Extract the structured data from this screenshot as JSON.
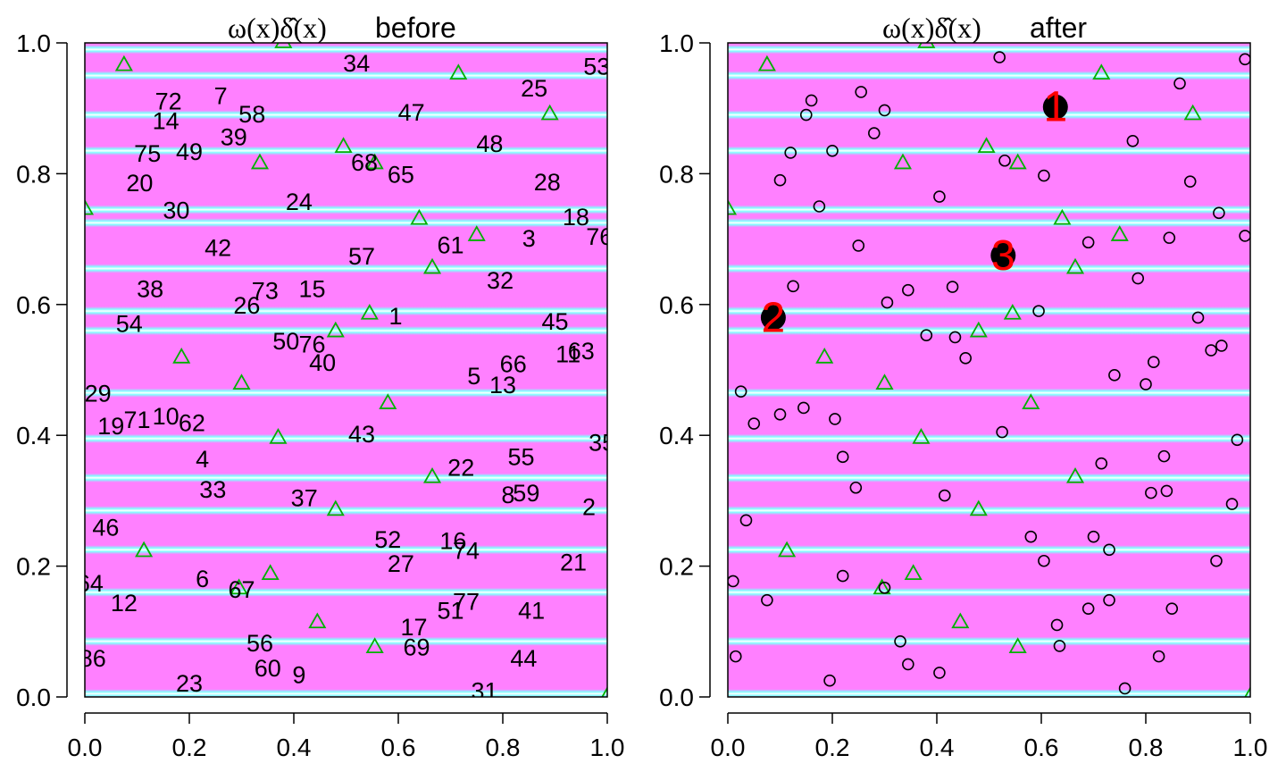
{
  "colors": {
    "background": "#ff80ff",
    "band_edge": "#80ffff",
    "band_mid": "#ffffff",
    "triangle": "#00b000",
    "circle": "#000000",
    "highlight_label": "#ff0000"
  },
  "chart_data": [
    {
      "type": "scatter",
      "title": "before",
      "title_formula": "ω(x)δ̂(x)",
      "xlim": [
        0,
        1
      ],
      "ylim": [
        0,
        1
      ],
      "x_ticks": [
        "0.0",
        "0.2",
        "0.4",
        "0.6",
        "0.8",
        "1.0"
      ],
      "y_ticks": [
        "0.0",
        "0.2",
        "0.4",
        "0.6",
        "0.8",
        "1.0"
      ],
      "background_bands_y": [
        0.005,
        0.085,
        0.16,
        0.225,
        0.285,
        0.335,
        0.395,
        0.465,
        0.56,
        0.59,
        0.655,
        0.725,
        0.745,
        0.835,
        0.89,
        0.95,
        0.99
      ],
      "triangles": [
        [
          0.075,
          0.965
        ],
        [
          0.38,
          1.0
        ],
        [
          0.715,
          0.952
        ],
        [
          0.89,
          0.89
        ],
        [
          0.495,
          0.84
        ],
        [
          0.335,
          0.815
        ],
        [
          0.555,
          0.815
        ],
        [
          0.0,
          0.745
        ],
        [
          0.64,
          0.73
        ],
        [
          0.75,
          0.705
        ],
        [
          0.665,
          0.655
        ],
        [
          0.545,
          0.585
        ],
        [
          0.48,
          0.558
        ],
        [
          0.185,
          0.518
        ],
        [
          0.3,
          0.478
        ],
        [
          0.58,
          0.448
        ],
        [
          0.37,
          0.395
        ],
        [
          0.665,
          0.335
        ],
        [
          0.48,
          0.285
        ],
        [
          0.113,
          0.222
        ],
        [
          0.355,
          0.187
        ],
        [
          0.295,
          0.165
        ],
        [
          0.445,
          0.113
        ],
        [
          0.555,
          0.075
        ],
        [
          1.0,
          0.0
        ]
      ],
      "labels": [
        {
          "text": "34",
          "x": 0.52,
          "y": 0.97
        },
        {
          "text": "53",
          "x": 0.98,
          "y": 0.965
        },
        {
          "text": "25",
          "x": 0.86,
          "y": 0.932
        },
        {
          "text": "7",
          "x": 0.26,
          "y": 0.92
        },
        {
          "text": "72",
          "x": 0.16,
          "y": 0.912
        },
        {
          "text": "14",
          "x": 0.155,
          "y": 0.882
        },
        {
          "text": "58",
          "x": 0.32,
          "y": 0.892
        },
        {
          "text": "47",
          "x": 0.625,
          "y": 0.895
        },
        {
          "text": "39",
          "x": 0.285,
          "y": 0.857
        },
        {
          "text": "75",
          "x": 0.12,
          "y": 0.832
        },
        {
          "text": "49",
          "x": 0.2,
          "y": 0.835
        },
        {
          "text": "48",
          "x": 0.775,
          "y": 0.847
        },
        {
          "text": "68",
          "x": 0.535,
          "y": 0.818
        },
        {
          "text": "65",
          "x": 0.605,
          "y": 0.8
        },
        {
          "text": "28",
          "x": 0.885,
          "y": 0.788
        },
        {
          "text": "20",
          "x": 0.105,
          "y": 0.787
        },
        {
          "text": "24",
          "x": 0.41,
          "y": 0.758
        },
        {
          "text": "30",
          "x": 0.175,
          "y": 0.745
        },
        {
          "text": "18",
          "x": 0.94,
          "y": 0.735
        },
        {
          "text": "76",
          "x": 0.985,
          "y": 0.705
        },
        {
          "text": "3",
          "x": 0.85,
          "y": 0.702
        },
        {
          "text": "61",
          "x": 0.7,
          "y": 0.692
        },
        {
          "text": "42",
          "x": 0.255,
          "y": 0.688
        },
        {
          "text": "57",
          "x": 0.53,
          "y": 0.675
        },
        {
          "text": "32",
          "x": 0.795,
          "y": 0.638
        },
        {
          "text": "38",
          "x": 0.125,
          "y": 0.625
        },
        {
          "text": "73",
          "x": 0.345,
          "y": 0.622
        },
        {
          "text": "15",
          "x": 0.435,
          "y": 0.625
        },
        {
          "text": "26",
          "x": 0.31,
          "y": 0.6
        },
        {
          "text": "1",
          "x": 0.595,
          "y": 0.583
        },
        {
          "text": "54",
          "x": 0.085,
          "y": 0.572
        },
        {
          "text": "45",
          "x": 0.9,
          "y": 0.575
        },
        {
          "text": "50",
          "x": 0.385,
          "y": 0.545
        },
        {
          "text": "76",
          "x": 0.435,
          "y": 0.54
        },
        {
          "text": "63",
          "x": 0.95,
          "y": 0.53
        },
        {
          "text": "11",
          "x": 0.925,
          "y": 0.525
        },
        {
          "text": "40",
          "x": 0.455,
          "y": 0.512
        },
        {
          "text": "66",
          "x": 0.82,
          "y": 0.51
        },
        {
          "text": "5",
          "x": 0.745,
          "y": 0.492
        },
        {
          "text": "13",
          "x": 0.8,
          "y": 0.478
        },
        {
          "text": "29",
          "x": 0.025,
          "y": 0.465
        },
        {
          "text": "71",
          "x": 0.1,
          "y": 0.425
        },
        {
          "text": "10",
          "x": 0.155,
          "y": 0.43
        },
        {
          "text": "62",
          "x": 0.205,
          "y": 0.42
        },
        {
          "text": "19",
          "x": 0.05,
          "y": 0.415
        },
        {
          "text": "43",
          "x": 0.53,
          "y": 0.403
        },
        {
          "text": "35",
          "x": 0.99,
          "y": 0.39
        },
        {
          "text": "4",
          "x": 0.225,
          "y": 0.365
        },
        {
          "text": "55",
          "x": 0.835,
          "y": 0.368
        },
        {
          "text": "22",
          "x": 0.72,
          "y": 0.352
        },
        {
          "text": "33",
          "x": 0.245,
          "y": 0.318
        },
        {
          "text": "37",
          "x": 0.42,
          "y": 0.305
        },
        {
          "text": "8",
          "x": 0.81,
          "y": 0.31
        },
        {
          "text": "59",
          "x": 0.845,
          "y": 0.313
        },
        {
          "text": "2",
          "x": 0.965,
          "y": 0.292
        },
        {
          "text": "46",
          "x": 0.04,
          "y": 0.26
        },
        {
          "text": "52",
          "x": 0.58,
          "y": 0.242
        },
        {
          "text": "16",
          "x": 0.705,
          "y": 0.24
        },
        {
          "text": "74",
          "x": 0.73,
          "y": 0.225
        },
        {
          "text": "27",
          "x": 0.605,
          "y": 0.205
        },
        {
          "text": "21",
          "x": 0.935,
          "y": 0.207
        },
        {
          "text": "6",
          "x": 0.225,
          "y": 0.182
        },
        {
          "text": "64",
          "x": 0.01,
          "y": 0.175
        },
        {
          "text": "67",
          "x": 0.3,
          "y": 0.165
        },
        {
          "text": "12",
          "x": 0.075,
          "y": 0.145
        },
        {
          "text": "77",
          "x": 0.73,
          "y": 0.147
        },
        {
          "text": "51",
          "x": 0.7,
          "y": 0.133
        },
        {
          "text": "41",
          "x": 0.855,
          "y": 0.133
        },
        {
          "text": "17",
          "x": 0.63,
          "y": 0.108
        },
        {
          "text": "56",
          "x": 0.335,
          "y": 0.083
        },
        {
          "text": "69",
          "x": 0.635,
          "y": 0.077
        },
        {
          "text": "86",
          "x": 0.015,
          "y": 0.06
        },
        {
          "text": "44",
          "x": 0.84,
          "y": 0.06
        },
        {
          "text": "60",
          "x": 0.35,
          "y": 0.045
        },
        {
          "text": "9",
          "x": 0.41,
          "y": 0.035
        },
        {
          "text": "23",
          "x": 0.2,
          "y": 0.022
        },
        {
          "text": "31",
          "x": 0.765,
          "y": 0.01
        }
      ]
    },
    {
      "type": "scatter",
      "title": "after",
      "title_formula": "ω(x)δ̂(x)",
      "xlim": [
        0,
        1
      ],
      "ylim": [
        0,
        1
      ],
      "x_ticks": [
        "0.0",
        "0.2",
        "0.4",
        "0.6",
        "0.8",
        "1.0"
      ],
      "y_ticks": [
        "0.0",
        "0.2",
        "0.4",
        "0.6",
        "0.8",
        "1.0"
      ],
      "background_bands_y": [
        0.005,
        0.085,
        0.16,
        0.225,
        0.285,
        0.335,
        0.395,
        0.465,
        0.56,
        0.59,
        0.655,
        0.725,
        0.745,
        0.835,
        0.89,
        0.95,
        0.99
      ],
      "triangles": [
        [
          0.075,
          0.965
        ],
        [
          0.38,
          1.0
        ],
        [
          0.715,
          0.952
        ],
        [
          0.89,
          0.89
        ],
        [
          0.495,
          0.84
        ],
        [
          0.335,
          0.815
        ],
        [
          0.555,
          0.815
        ],
        [
          0.0,
          0.745
        ],
        [
          0.64,
          0.73
        ],
        [
          0.75,
          0.705
        ],
        [
          0.665,
          0.655
        ],
        [
          0.545,
          0.585
        ],
        [
          0.48,
          0.558
        ],
        [
          0.185,
          0.518
        ],
        [
          0.3,
          0.478
        ],
        [
          0.58,
          0.448
        ],
        [
          0.37,
          0.395
        ],
        [
          0.665,
          0.335
        ],
        [
          0.48,
          0.285
        ],
        [
          0.113,
          0.222
        ],
        [
          0.355,
          0.187
        ],
        [
          0.295,
          0.165
        ],
        [
          0.445,
          0.113
        ],
        [
          0.555,
          0.075
        ],
        [
          1.0,
          0.0
        ]
      ],
      "circles": [
        [
          0.52,
          0.978
        ],
        [
          0.99,
          0.975
        ],
        [
          0.865,
          0.938
        ],
        [
          0.255,
          0.925
        ],
        [
          0.16,
          0.912
        ],
        [
          0.3,
          0.897
        ],
        [
          0.15,
          0.89
        ],
        [
          0.28,
          0.862
        ],
        [
          0.775,
          0.85
        ],
        [
          0.12,
          0.832
        ],
        [
          0.2,
          0.835
        ],
        [
          0.53,
          0.82
        ],
        [
          0.605,
          0.797
        ],
        [
          0.1,
          0.79
        ],
        [
          0.885,
          0.788
        ],
        [
          0.405,
          0.765
        ],
        [
          0.175,
          0.75
        ],
        [
          0.94,
          0.74
        ],
        [
          0.99,
          0.705
        ],
        [
          0.845,
          0.702
        ],
        [
          0.69,
          0.695
        ],
        [
          0.25,
          0.69
        ],
        [
          0.785,
          0.64
        ],
        [
          0.125,
          0.628
        ],
        [
          0.345,
          0.622
        ],
        [
          0.43,
          0.627
        ],
        [
          0.305,
          0.603
        ],
        [
          0.595,
          0.59
        ],
        [
          0.9,
          0.58
        ],
        [
          0.38,
          0.553
        ],
        [
          0.435,
          0.55
        ],
        [
          0.945,
          0.537
        ],
        [
          0.925,
          0.53
        ],
        [
          0.455,
          0.518
        ],
        [
          0.815,
          0.512
        ],
        [
          0.74,
          0.492
        ],
        [
          0.8,
          0.478
        ],
        [
          0.025,
          0.467
        ],
        [
          0.1,
          0.432
        ],
        [
          0.145,
          0.442
        ],
        [
          0.205,
          0.425
        ],
        [
          0.05,
          0.418
        ],
        [
          0.525,
          0.405
        ],
        [
          0.975,
          0.393
        ],
        [
          0.22,
          0.367
        ],
        [
          0.835,
          0.368
        ],
        [
          0.715,
          0.357
        ],
        [
          0.245,
          0.32
        ],
        [
          0.415,
          0.308
        ],
        [
          0.81,
          0.312
        ],
        [
          0.84,
          0.315
        ],
        [
          0.965,
          0.295
        ],
        [
          0.035,
          0.27
        ],
        [
          0.58,
          0.245
        ],
        [
          0.7,
          0.245
        ],
        [
          0.73,
          0.225
        ],
        [
          0.605,
          0.208
        ],
        [
          0.935,
          0.208
        ],
        [
          0.22,
          0.185
        ],
        [
          0.01,
          0.177
        ],
        [
          0.3,
          0.167
        ],
        [
          0.075,
          0.148
        ],
        [
          0.73,
          0.148
        ],
        [
          0.69,
          0.135
        ],
        [
          0.85,
          0.135
        ],
        [
          0.63,
          0.11
        ],
        [
          0.33,
          0.085
        ],
        [
          0.635,
          0.078
        ],
        [
          0.015,
          0.062
        ],
        [
          0.825,
          0.062
        ],
        [
          0.345,
          0.05
        ],
        [
          0.405,
          0.037
        ],
        [
          0.195,
          0.025
        ],
        [
          0.76,
          0.013
        ]
      ],
      "highlights": [
        {
          "label": "1",
          "x": 0.627,
          "y": 0.902
        },
        {
          "label": "3",
          "x": 0.527,
          "y": 0.675
        },
        {
          "label": "2",
          "x": 0.087,
          "y": 0.58
        }
      ]
    }
  ]
}
